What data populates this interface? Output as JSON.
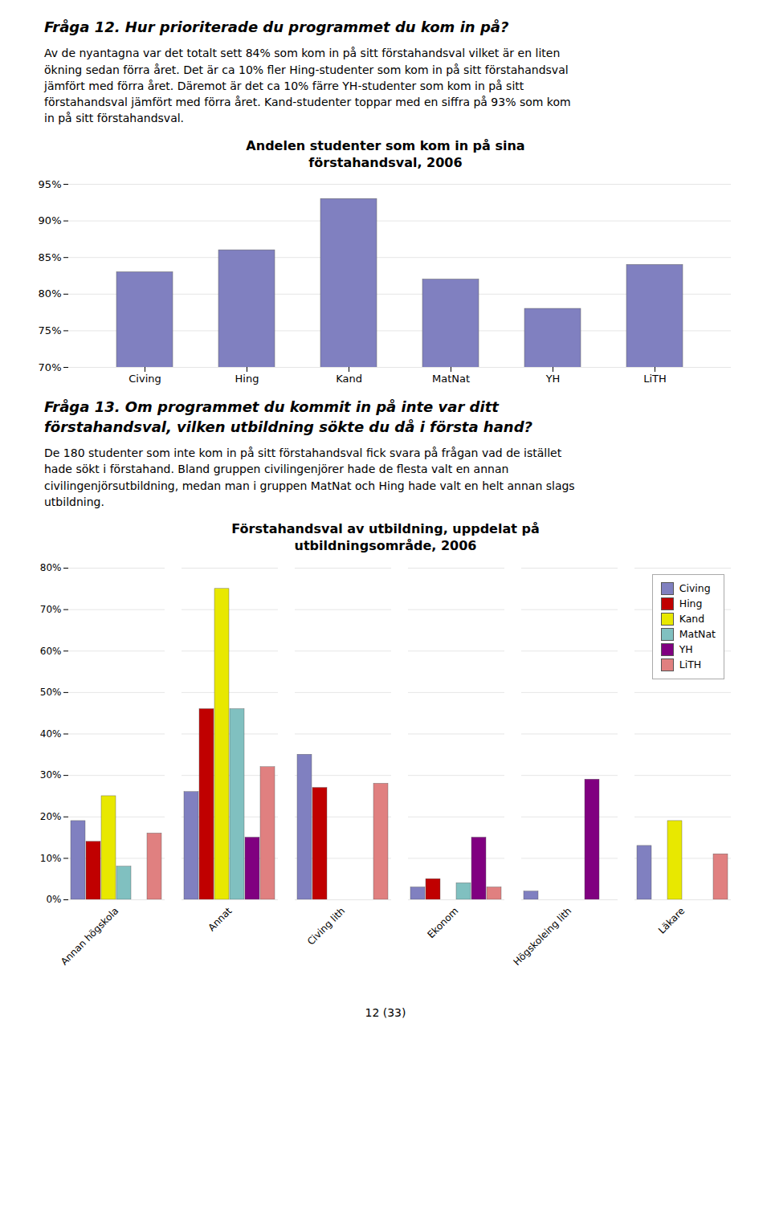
{
  "heading1": [
    "Fråga 12. Hur prioriterade du programmet du kom in på?"
  ],
  "paragraph1": [
    "Av de nyantagna var det totalt sett 84% som kom in på sitt förstahandsval vilket är en liten",
    "ökning sedan förra året. Det är ca 10% fler Hing-studenter som kom in på sitt förstahandsval",
    "jämfört med förra året. Däremot är det ca 10% färre YH-studenter som kom in på sitt",
    "förstahandsval jämfört med förra året. Kand-studenter toppar med en siffra på 93% som kom",
    "in på sitt förstahandsval."
  ],
  "heading2": [
    "Fråga 13. Om programmet du kommit in på inte var ditt",
    "förstahandsval, vilken utbildning sökte du då i första hand?"
  ],
  "paragraph2": [
    "De 180 studenter som inte kom in på sitt förstahandsval fick svara på frågan vad de istället",
    "hade sökt i förstahand. Bland gruppen civilingenjörer hade de flesta valt en annan",
    "civilingenjörsutbildning, medan man i gruppen MatNat och Hing hade valt en helt annan slags",
    "utbildning."
  ],
  "footer": "12 (33)",
  "chart_data": [
    {
      "type": "bar",
      "title": "Andelen studenter som kom in på sina\nförstahandsval, 2006",
      "categories": [
        "Civing",
        "Hing",
        "Kand",
        "MatNat",
        "YH",
        "LiTH"
      ],
      "values": [
        0.83,
        0.86,
        0.93,
        0.82,
        0.78,
        0.84
      ],
      "color": "#8080c0",
      "ylim": [
        0.7,
        0.95
      ],
      "yticks": [
        {
          "value": 0.7,
          "label": "70%"
        },
        {
          "value": 0.75,
          "label": "75%"
        },
        {
          "value": 0.8,
          "label": "80%"
        },
        {
          "value": 0.85,
          "label": "85%"
        },
        {
          "value": 0.9,
          "label": "90%"
        },
        {
          "value": 0.95,
          "label": "95%"
        }
      ],
      "grid": true
    },
    {
      "type": "bar",
      "title": "Förstahandsval av utbildning, uppdelat på\nutbildningsområde, 2006",
      "categories": [
        "Annan högskola",
        "Annat",
        "Civing lith",
        "Ekonom",
        "Högskoleing lith",
        "Läkare"
      ],
      "series": [
        {
          "name": "Civing",
          "color": "#8080c0",
          "values": [
            0.19,
            0.26,
            0.35,
            0.03,
            0.02,
            0.13
          ]
        },
        {
          "name": "Hing",
          "color": "#c00000",
          "values": [
            0.14,
            0.46,
            0.27,
            0.05,
            0.0,
            0.0
          ]
        },
        {
          "name": "Kand",
          "color": "#e8e800",
          "values": [
            0.25,
            0.75,
            0.0,
            0.0,
            0.0,
            0.19
          ]
        },
        {
          "name": "MatNat",
          "color": "#80c0c0",
          "values": [
            0.08,
            0.46,
            0.0,
            0.04,
            0.0,
            0.0
          ]
        },
        {
          "name": "YH",
          "color": "#800080",
          "values": [
            0.0,
            0.15,
            0.0,
            0.15,
            0.29,
            0.0
          ]
        },
        {
          "name": "LiTH",
          "color": "#e08080",
          "values": [
            0.16,
            0.32,
            0.28,
            0.03,
            0.0,
            0.11
          ]
        }
      ],
      "ylim": [
        0.0,
        0.8
      ],
      "yticks": [
        {
          "value": 0.0,
          "label": "0%"
        },
        {
          "value": 0.1,
          "label": "10%"
        },
        {
          "value": 0.2,
          "label": "20%"
        },
        {
          "value": 0.3,
          "label": "30%"
        },
        {
          "value": 0.4,
          "label": "40%"
        },
        {
          "value": 0.5,
          "label": "50%"
        },
        {
          "value": 0.6,
          "label": "60%"
        },
        {
          "value": 0.7,
          "label": "70%"
        },
        {
          "value": 0.8,
          "label": "80%"
        }
      ],
      "grid": true,
      "legend": "upper right"
    }
  ]
}
